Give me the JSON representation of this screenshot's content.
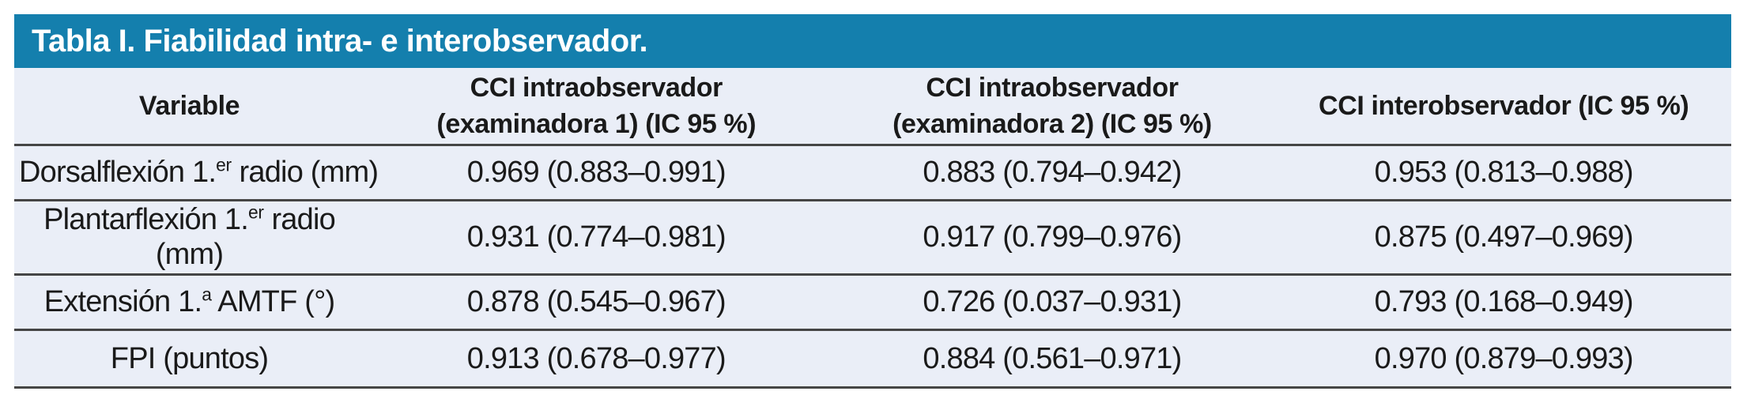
{
  "table": {
    "title": "Tabla I. Fiabilidad intra- e interobservador.",
    "colors": {
      "title_bar_bg": "#147FAD",
      "title_text": "#FFFFFF",
      "row_bg": "#EAEEF7",
      "rule": "#454545",
      "body_text": "#1A1A1A"
    },
    "columns": [
      {
        "line1": "Variable",
        "line2": ""
      },
      {
        "line1": "CCI intraobservador",
        "line2": "(examinadora 1) (IC 95 %)"
      },
      {
        "line1": "CCI intraobservador",
        "line2": "(examinadora 2) (IC 95 %)"
      },
      {
        "line1": "CCI interobservador (IC 95 %)",
        "line2": ""
      }
    ],
    "rows": [
      {
        "variable_pre": "Dorsalflexión 1.",
        "variable_sup": "er",
        "variable_post": " radio (mm)",
        "variable_line2": "",
        "cci_intra_1": "0.969 (0.883–0.991)",
        "cci_intra_2": "0.883 (0.794–0.942)",
        "cci_inter": "0.953 (0.813–0.988)"
      },
      {
        "variable_pre": "Plantarflexión 1.",
        "variable_sup": "er",
        "variable_post": " radio",
        "variable_line2": "(mm)",
        "cci_intra_1": "0.931 (0.774–0.981)",
        "cci_intra_2": "0.917 (0.799–0.976)",
        "cci_inter": "0.875 (0.497–0.969)"
      },
      {
        "variable_pre": "Extensión 1.",
        "variable_sup": "a",
        "variable_post": " AMTF (°)",
        "variable_line2": "",
        "cci_intra_1": "0.878 (0.545–0.967)",
        "cci_intra_2": "0.726 (0.037–0.931)",
        "cci_inter": "0.793 (0.168–0.949)"
      },
      {
        "variable_pre": "FPI (puntos)",
        "variable_sup": "",
        "variable_post": "",
        "variable_line2": "",
        "cci_intra_1": "0.913 (0.678–0.977)",
        "cci_intra_2": "0.884 (0.561–0.971)",
        "cci_inter": "0.970 (0.879–0.993)"
      }
    ]
  }
}
